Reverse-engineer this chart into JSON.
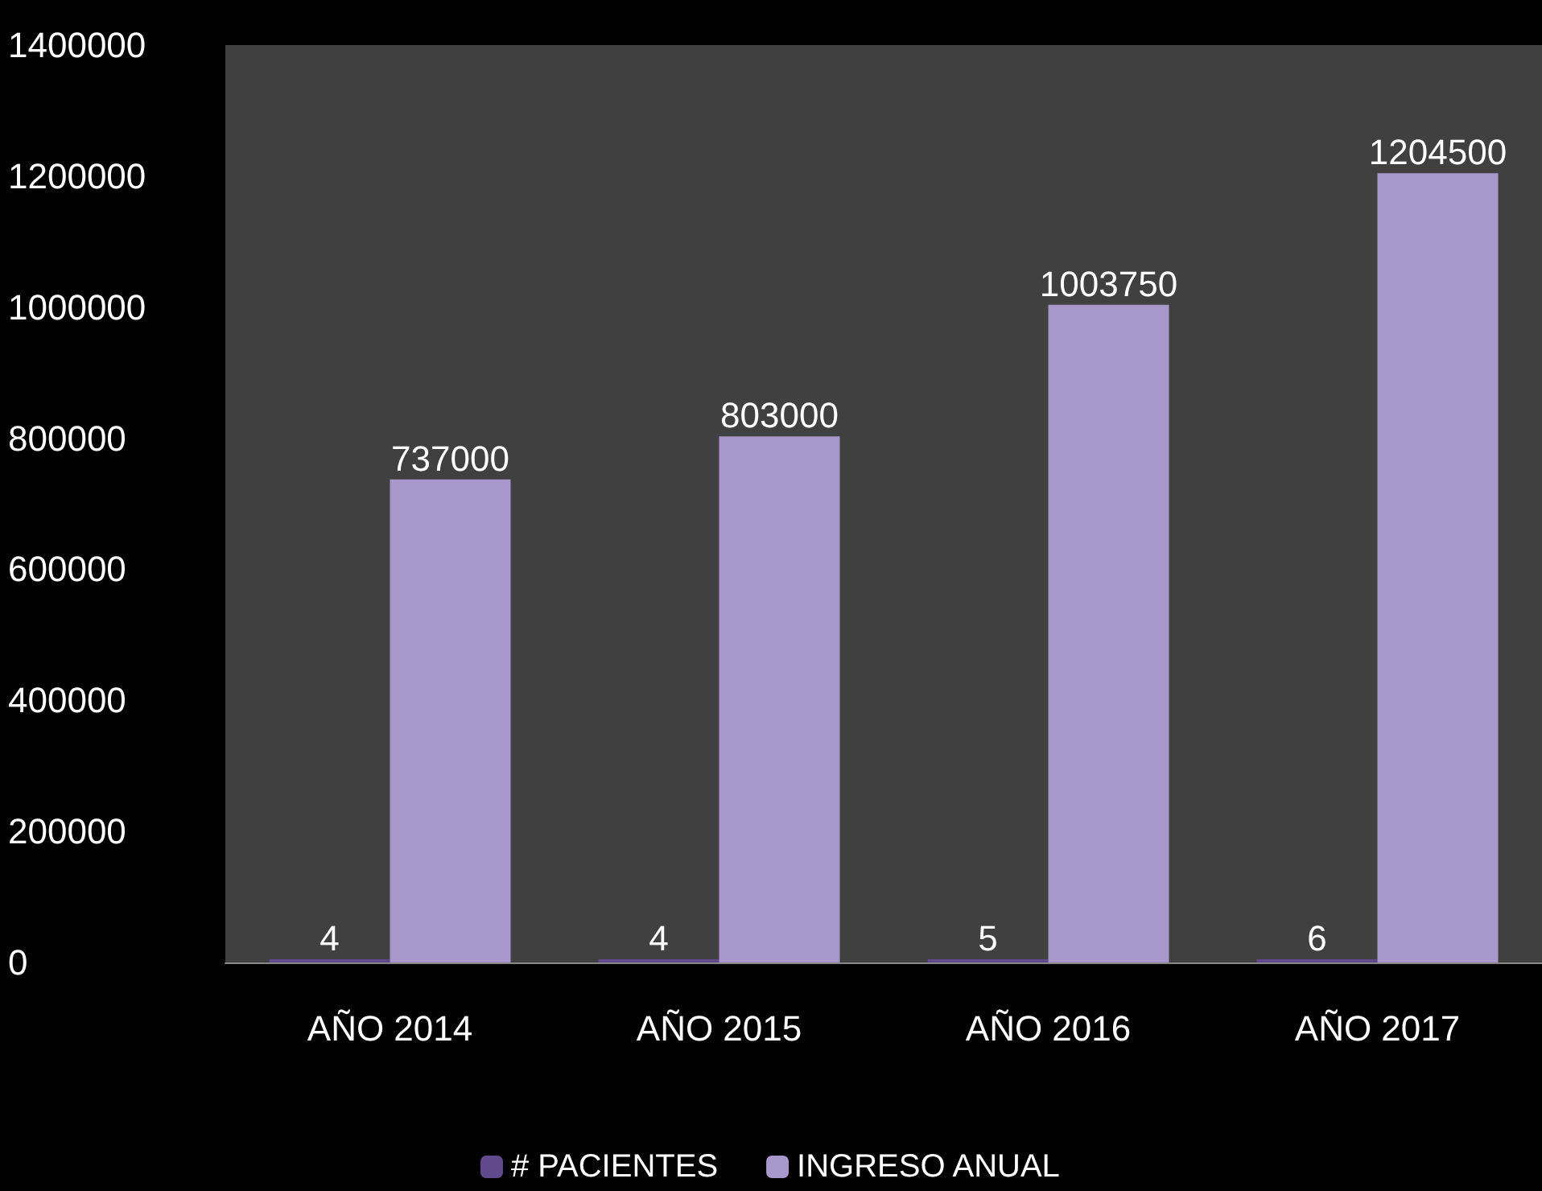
{
  "chart_data": {
    "type": "bar",
    "categories": [
      "AÑO 2014",
      "AÑO 2015",
      "AÑO 2016",
      "AÑO 2017"
    ],
    "series": [
      {
        "name": "# PACIENTES",
        "color": "#604a8c",
        "values": [
          4,
          4,
          5,
          6
        ]
      },
      {
        "name": "INGRESO ANUAL",
        "color": "#a797cb",
        "values": [
          737000,
          803000,
          1003750,
          1204500
        ]
      }
    ],
    "ylim": [
      0,
      1400000
    ],
    "yticks": [
      0,
      200000,
      400000,
      600000,
      800000,
      1000000,
      1200000,
      1400000
    ],
    "grid": false,
    "legend": "bottom",
    "data_labels": true
  }
}
